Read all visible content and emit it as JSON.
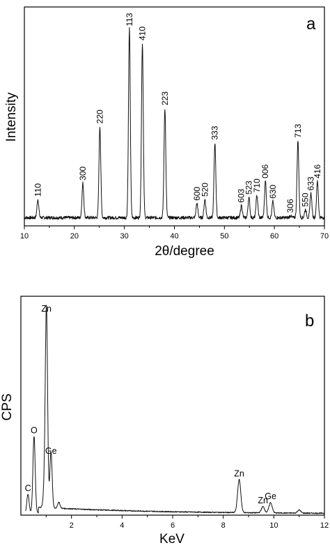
{
  "chart_data": [
    {
      "type": "line",
      "panel_label": "a",
      "xlabel": "2θ/degree",
      "ylabel": "Intensity",
      "xlim": [
        10,
        70
      ],
      "ylim": [
        0,
        100
      ],
      "x_ticks": [
        "10",
        "20",
        "30",
        "40",
        "50",
        "60",
        "70"
      ],
      "x_tick_values": [
        10,
        20,
        30,
        40,
        50,
        60,
        70
      ],
      "grid": false,
      "baseline": 3,
      "peaks": [
        {
          "label": "110",
          "x": 12.7,
          "y": 12
        },
        {
          "label": "300",
          "x": 21.7,
          "y": 20
        },
        {
          "label": "220",
          "x": 25.1,
          "y": 48
        },
        {
          "label": "113",
          "x": 31.0,
          "y": 96
        },
        {
          "label": "410",
          "x": 33.6,
          "y": 89
        },
        {
          "label": "223",
          "x": 38.1,
          "y": 57
        },
        {
          "label": "600",
          "x": 44.5,
          "y": 10
        },
        {
          "label": "520",
          "x": 46.1,
          "y": 12
        },
        {
          "label": "333",
          "x": 48.1,
          "y": 40
        },
        {
          "label": "603",
          "x": 53.4,
          "y": 9
        },
        {
          "label": "523",
          "x": 54.9,
          "y": 13
        },
        {
          "label": "710",
          "x": 56.5,
          "y": 14
        },
        {
          "label": "006",
          "x": 58.2,
          "y": 21
        },
        {
          "label": "630",
          "x": 59.7,
          "y": 11
        },
        {
          "label": "306",
          "x": 63.2,
          "y": 4
        },
        {
          "label": "713",
          "x": 64.7,
          "y": 41
        },
        {
          "label": "550",
          "x": 66.2,
          "y": 7
        },
        {
          "label": "633",
          "x": 67.3,
          "y": 15
        },
        {
          "label": "416",
          "x": 68.6,
          "y": 21
        }
      ]
    },
    {
      "type": "line",
      "panel_label": "b",
      "xlabel": "KeV",
      "ylabel": "CPS",
      "xlim": [
        0,
        12
      ],
      "ylim": [
        0,
        100
      ],
      "x_ticks": [
        "2",
        "4",
        "6",
        "8",
        "10",
        "12"
      ],
      "x_tick_values": [
        2,
        4,
        6,
        8,
        10,
        12
      ],
      "grid": false,
      "peaks": [
        {
          "label": "C",
          "x": 0.28,
          "y": 9
        },
        {
          "label": "O",
          "x": 0.52,
          "y": 37
        },
        {
          "label": "",
          "x": 0.93,
          "y": 9
        },
        {
          "label": "Zn",
          "x": 1.01,
          "y": 96
        },
        {
          "label": "Ge",
          "x": 1.19,
          "y": 27
        },
        {
          "label": "",
          "x": 1.5,
          "y": 3
        },
        {
          "label": "Zn",
          "x": 8.63,
          "y": 16
        },
        {
          "label": "Zn",
          "x": 9.57,
          "y": 3
        },
        {
          "label": "Ge",
          "x": 9.87,
          "y": 5
        },
        {
          "label": "",
          "x": 11.0,
          "y": 1.5
        }
      ]
    }
  ]
}
